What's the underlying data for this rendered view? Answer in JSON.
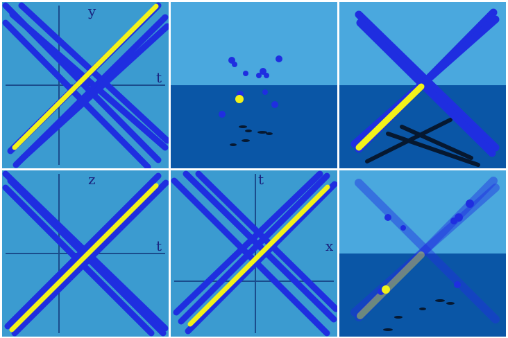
{
  "colors": {
    "sky": "#3b9bd0",
    "sky_top": "#4aa8de",
    "floor": "#0a56a6",
    "rod_blue": "#1f2ee0",
    "rod_yellow": "#f2f21a",
    "axis_line": "#1a4c8c",
    "border": "#ffffff"
  },
  "panels": [
    {
      "kind": "spacetime",
      "vertical_axis_label": "y",
      "horizontal_axis_label": "t"
    },
    {
      "kind": "3d-scene",
      "description_icon": "particles-scene-icon"
    },
    {
      "kind": "3d-scene",
      "description_icon": "x-rods-scene-icon"
    },
    {
      "kind": "spacetime",
      "vertical_axis_label": "z",
      "horizontal_axis_label": "t"
    },
    {
      "kind": "spacetime",
      "vertical_axis_label": "t",
      "horizontal_axis_label": "x"
    },
    {
      "kind": "3d-scene",
      "description_icon": "translucent-rods-scene-icon"
    }
  ]
}
